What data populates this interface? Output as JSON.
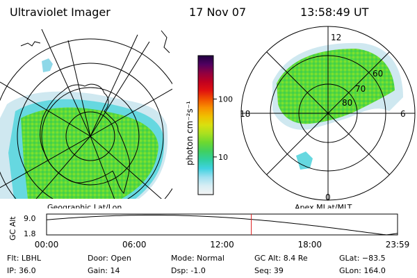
{
  "header": {
    "instrument": "Ultraviolet Imager",
    "date": "17 Nov 07",
    "time": "13:58:49 UT"
  },
  "left_panel": {
    "label": "Geographic Lat/Lon"
  },
  "right_panel": {
    "label": "Apex MLat/MLT",
    "mlt_labels": {
      "top": "12",
      "left": "18",
      "right": "6",
      "bottom": "0"
    },
    "lat_labels": [
      "60",
      "70",
      "80"
    ]
  },
  "colorbar": {
    "unit_label": "photon cm⁻²s⁻¹",
    "ticks": [
      {
        "label": "100",
        "value": 100
      },
      {
        "label": "10",
        "value": 10
      }
    ],
    "colors": [
      "#f4f4f4",
      "#d8eef4",
      "#9fe0f0",
      "#40d2e0",
      "#30d0a0",
      "#40d060",
      "#6cd830",
      "#a8e020",
      "#d8e010",
      "#f0c000",
      "#f89000",
      "#f05000",
      "#e01010",
      "#c00020",
      "#900040",
      "#500060",
      "#200040"
    ]
  },
  "altitude_plot": {
    "axis_label": "GC Alt",
    "y_ticks": [
      "9.0",
      "1.8"
    ],
    "x_ticks": [
      "00:00",
      "06:00",
      "12:00",
      "18:00",
      "23:59"
    ],
    "current_time_hours": 14.0
  },
  "info": {
    "flt": "Flt: LBHL",
    "ip": "IP: 36.0",
    "door": "Door: Open",
    "gain": "Gain: 14",
    "mode": "Mode: Normal",
    "dsp": "Dsp:    -1.0",
    "gc_alt": "GC Alt: 8.4 Re",
    "seq": "Seq: 39",
    "glat": "GLat: −83.5",
    "glon": "GLon: 164.0"
  }
}
